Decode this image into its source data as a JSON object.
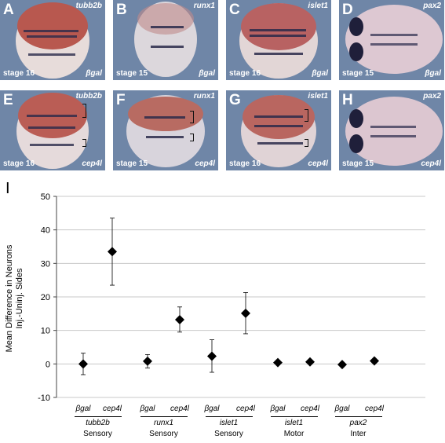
{
  "figure": {
    "panels": [
      {
        "letter": "A",
        "gene": "tubb2b",
        "stage": "stage 16",
        "injection": "βgal"
      },
      {
        "letter": "B",
        "gene": "runx1",
        "stage": "stage 15",
        "injection": "βgal"
      },
      {
        "letter": "C",
        "gene": "islet1",
        "stage": "stage 16",
        "injection": "βgal"
      },
      {
        "letter": "D",
        "gene": "pax2",
        "stage": "stage 15",
        "injection": "βgal"
      },
      {
        "letter": "E",
        "gene": "tubb2b",
        "stage": "stage 16",
        "injection": "cep4l"
      },
      {
        "letter": "F",
        "gene": "runx1",
        "stage": "stage 15",
        "injection": "cep4l"
      },
      {
        "letter": "G",
        "gene": "islet1",
        "stage": "stage 16",
        "injection": "cep4l"
      },
      {
        "letter": "H",
        "gene": "pax2",
        "stage": "stage 15",
        "injection": "cep4l"
      }
    ],
    "chart_label": "I"
  },
  "chart_data": {
    "type": "scatter",
    "ylabel_line1": "Mean Difference in Neurons",
    "ylabel_line2": "Inj.-Uninj. Sides",
    "ylim": [
      -10,
      50
    ],
    "yticks": [
      -10,
      0,
      10,
      20,
      30,
      40,
      50
    ],
    "grid": true,
    "legend": "none",
    "marker": "diamond",
    "categories": [
      {
        "injection": "βgal",
        "value": 0.0,
        "err_low": -3.2,
        "err_high": 3.2
      },
      {
        "injection": "cep4l",
        "value": 33.5,
        "err_low": 23.5,
        "err_high": 43.5
      },
      {
        "injection": "βgal",
        "value": 0.8,
        "err_low": -1.2,
        "err_high": 2.8
      },
      {
        "injection": "cep4l",
        "value": 13.2,
        "err_low": 9.5,
        "err_high": 17.0
      },
      {
        "injection": "βgal",
        "value": 2.3,
        "err_low": -2.5,
        "err_high": 7.2
      },
      {
        "injection": "cep4l",
        "value": 15.1,
        "err_low": 9.0,
        "err_high": 21.3
      },
      {
        "injection": "βgal",
        "value": 0.4,
        "err_low": 0.4,
        "err_high": 0.4
      },
      {
        "injection": "cep4l",
        "value": 0.6,
        "err_low": 0.6,
        "err_high": 0.6
      },
      {
        "injection": "βgal",
        "value": -0.2,
        "err_low": -0.2,
        "err_high": -0.2
      },
      {
        "injection": "cep4l",
        "value": 0.9,
        "err_low": 0.9,
        "err_high": 0.9
      }
    ],
    "groups": [
      {
        "gene": "tubb2b",
        "type": "Sensory"
      },
      {
        "gene": "runx1",
        "type": "Sensory"
      },
      {
        "gene": "islet1",
        "type": "Sensory"
      },
      {
        "gene": "islet1",
        "type": "Motor"
      },
      {
        "gene": "pax2",
        "type": "Inter"
      }
    ]
  }
}
